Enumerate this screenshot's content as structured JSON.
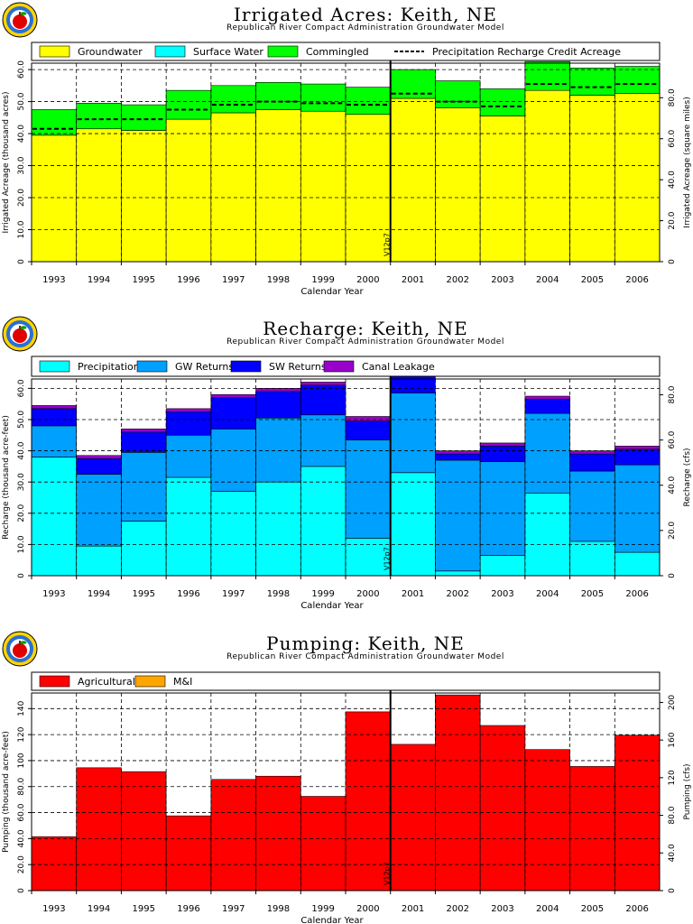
{
  "years": [
    "1993",
    "1994",
    "1995",
    "1996",
    "1997",
    "1998",
    "1999",
    "2000",
    "2001",
    "2002",
    "2003",
    "2004",
    "2005",
    "2006"
  ],
  "chart_data": [
    {
      "id": "irrigated",
      "type": "bar",
      "stacked": true,
      "title": "Irrigated Acres: Keith, NE",
      "subtitle": "Republican River Compact Administration Groundwater Model",
      "xlabel": "Calendar Year",
      "ylabel": "Irrigated Acreage (thousand acres)",
      "y2label": "Irrigated Acreage (square miles)",
      "ylim": [
        0,
        62
      ],
      "yticks": [
        0,
        10,
        20,
        30,
        40,
        50,
        60
      ],
      "ytick_labels": [
        "0",
        "10.0",
        "20.0",
        "30.0",
        "40.0",
        "50.0",
        "60.0"
      ],
      "y2lim": [
        0,
        96.875
      ],
      "y2ticks": [
        0,
        20,
        40,
        60,
        80
      ],
      "y2tick_labels": [
        "0",
        "20.0",
        "40.0",
        "60.0",
        "80.0"
      ],
      "grid": true,
      "legend_position": "top",
      "marker": {
        "x_after_index": 7,
        "label": "V12p7"
      },
      "series": [
        {
          "name": "Groundwater",
          "color": "#ffff00",
          "values": [
            39.5,
            41.5,
            41.0,
            44.5,
            46.5,
            47.5,
            47.0,
            46.0,
            51.0,
            48.0,
            45.5,
            53.5,
            52.0,
            52.5
          ]
        },
        {
          "name": "Surface Water",
          "color": "#00ffff",
          "values": [
            0,
            0,
            0,
            0,
            0,
            0,
            0,
            0,
            0,
            0,
            0,
            0,
            0,
            0
          ]
        },
        {
          "name": "Commingled",
          "color": "#00ff00",
          "values": [
            8.0,
            8.0,
            8.0,
            9.0,
            8.5,
            8.5,
            8.5,
            8.5,
            9.0,
            8.5,
            8.5,
            9.0,
            8.5,
            8.5
          ]
        }
      ],
      "lines": [
        {
          "name": "Precipitation Recharge Credit Acreage",
          "style": "dashed",
          "color": "#000000",
          "values": [
            41.5,
            44.5,
            44.5,
            47.5,
            49.0,
            50.0,
            49.5,
            49.0,
            52.5,
            50.0,
            48.5,
            55.5,
            54.5,
            55.5
          ]
        }
      ]
    },
    {
      "id": "recharge",
      "type": "bar",
      "stacked": true,
      "title": "Recharge: Keith, NE",
      "subtitle": "Republican River Compact Administration Groundwater Model",
      "xlabel": "Calendar Year",
      "ylabel": "Recharge (thousand acre-feet)",
      "y2label": "Recharge (cfs)",
      "ylim": [
        0,
        63
      ],
      "yticks": [
        0,
        10,
        20,
        30,
        40,
        50,
        60
      ],
      "ytick_labels": [
        "0",
        "10.0",
        "20.0",
        "30.0",
        "40.0",
        "50.0",
        "60.0"
      ],
      "y2lim": [
        0,
        87
      ],
      "y2ticks": [
        0,
        20,
        40,
        60,
        80
      ],
      "y2tick_labels": [
        "0",
        "20.0",
        "40.0",
        "60.0",
        "80.0"
      ],
      "grid": true,
      "legend_position": "top",
      "marker": {
        "x_after_index": 7,
        "label": "V12p7"
      },
      "series": [
        {
          "name": "Precipitation",
          "color": "#00ffff",
          "values": [
            38.0,
            9.5,
            17.5,
            31.5,
            27.0,
            30.0,
            35.0,
            12.0,
            33.0,
            1.5,
            6.5,
            26.5,
            11.0,
            7.5
          ]
        },
        {
          "name": "GW Returns",
          "color": "#00a0ff",
          "values": [
            10.0,
            23.0,
            22.0,
            13.5,
            20.0,
            20.5,
            16.5,
            31.5,
            25.5,
            35.5,
            30.0,
            25.5,
            22.5,
            28.0
          ]
        },
        {
          "name": "SW Returns",
          "color": "#0000ff",
          "values": [
            5.5,
            5.0,
            6.5,
            7.5,
            10.0,
            8.5,
            9.5,
            6.0,
            8.0,
            2.0,
            5.0,
            4.5,
            5.5,
            5.0
          ]
        },
        {
          "name": "Canal Leakage",
          "color": "#9900cc",
          "values": [
            1.0,
            1.0,
            1.0,
            1.0,
            1.0,
            1.0,
            1.0,
            1.5,
            1.0,
            1.0,
            1.0,
            1.0,
            1.0,
            1.0
          ]
        }
      ]
    },
    {
      "id": "pumping",
      "type": "bar",
      "stacked": true,
      "title": "Pumping: Keith, NE",
      "subtitle": "Republican River Compact Administration Groundwater Model",
      "xlabel": "Calendar Year",
      "ylabel": "Pumping (thousand acre-feet)",
      "y2label": "Pumping (cfs)",
      "ylim": [
        0,
        152
      ],
      "yticks": [
        0,
        20,
        40,
        60,
        80,
        100,
        120,
        140
      ],
      "ytick_labels": [
        "0",
        "20.0",
        "40.0",
        "60.0",
        "80.0",
        "100",
        "120",
        "140"
      ],
      "y2lim": [
        0,
        210
      ],
      "y2ticks": [
        0,
        40,
        80,
        120,
        160,
        200
      ],
      "y2tick_labels": [
        "0",
        "40.0",
        "80.0",
        "120",
        "160",
        "200"
      ],
      "grid": true,
      "legend_position": "top",
      "marker": {
        "x_after_index": 7,
        "label": "V12p7"
      },
      "series": [
        {
          "name": "Agricultural",
          "color": "#ff0000",
          "values": [
            41.5,
            94.5,
            91.5,
            57.5,
            85.5,
            88.0,
            72.5,
            137.5,
            112.5,
            150.5,
            127.0,
            108.5,
            95.5,
            119.5
          ]
        },
        {
          "name": "M&I",
          "color": "#ffa500",
          "values": [
            0,
            0,
            0,
            0,
            0,
            0,
            0,
            0,
            0,
            0,
            0,
            0,
            0,
            0
          ]
        }
      ]
    }
  ]
}
